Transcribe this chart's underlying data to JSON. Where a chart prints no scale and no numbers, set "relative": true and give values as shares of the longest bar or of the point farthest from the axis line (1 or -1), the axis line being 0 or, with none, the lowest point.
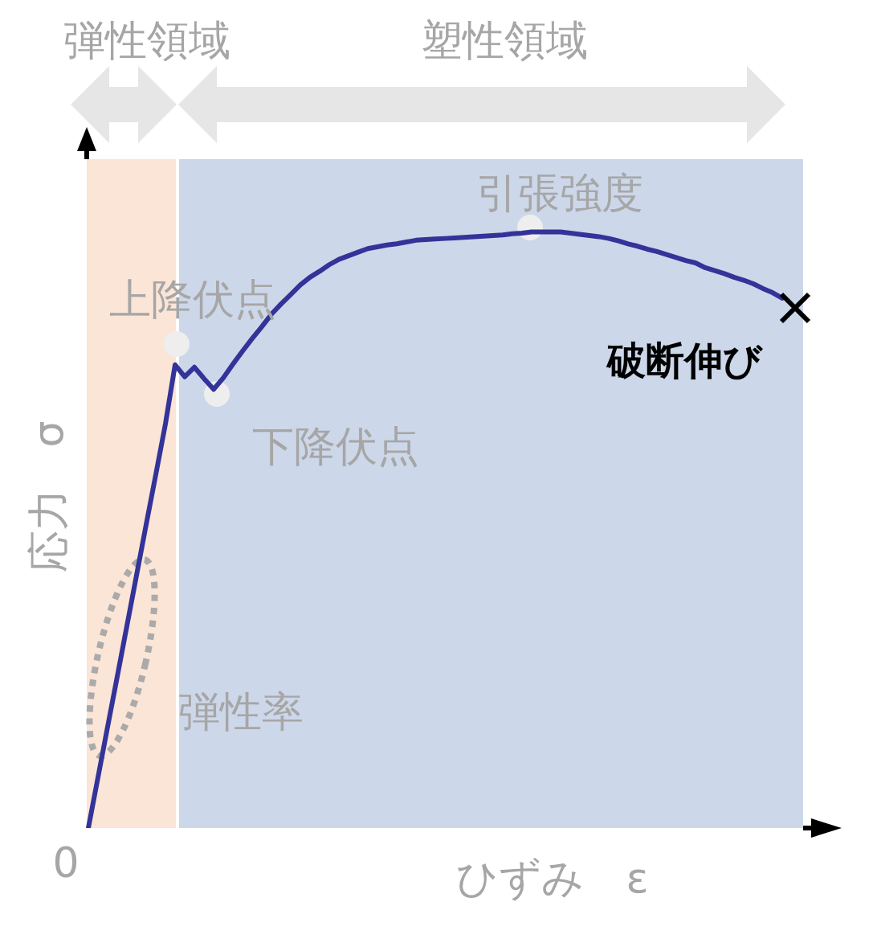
{
  "chart_data": {
    "type": "line",
    "relative": true,
    "xlabel": "ひずみ　ε",
    "ylabel": "応力　σ",
    "line_style": "solid",
    "categories": [
      null,
      null,
      null,
      null,
      null,
      null,
      null,
      null,
      null,
      null,
      null,
      null,
      null,
      null,
      null,
      null,
      null,
      null,
      null,
      null,
      null,
      null,
      null,
      null,
      null,
      null,
      null,
      null,
      null,
      null,
      null,
      null,
      null,
      null,
      null,
      null,
      null,
      null,
      null,
      null,
      null,
      null,
      null,
      null,
      null,
      null,
      null,
      null,
      null,
      null,
      null,
      null,
      null,
      null,
      null,
      null,
      null,
      null,
      null,
      null,
      null,
      null,
      null,
      null,
      null,
      null,
      null,
      null,
      null,
      null,
      null,
      null,
      null
    ],
    "series": [
      {
        "color": "#333399",
        "values": [
          0,
          0.085,
          0.17,
          0.254,
          0.339,
          0.424,
          0.509,
          0.593,
          0.678,
          0.777,
          0.757,
          0.773,
          0.754,
          0.736,
          0.755,
          0.778,
          0.8,
          0.821,
          0.841,
          0.862,
          0.879,
          0.895,
          0.911,
          0.924,
          0.934,
          0.945,
          0.954,
          0.96,
          0.966,
          0.972,
          0.975,
          0.978,
          0.98,
          0.983,
          0.986,
          0.987,
          0.988,
          0.989,
          0.99,
          0.991,
          0.992,
          0.993,
          0.994,
          0.995,
          0.997,
          0.998,
          1,
          1,
          1,
          1,
          0.998,
          0.996,
          0.994,
          0.992,
          0.989,
          0.985,
          0.98,
          0.976,
          0.971,
          0.967,
          0.962,
          0.957,
          0.952,
          0.948,
          0.94,
          0.935,
          0.93,
          0.924,
          0.919,
          0.913,
          0.905,
          0.898,
          0.889
        ]
      }
    ],
    "annotations": [
      "上降伏点",
      "下降伏点",
      "引張強度",
      "破断伸び",
      "弾性率",
      "0",
      "弾性領域",
      "塑性領域"
    ]
  }
}
